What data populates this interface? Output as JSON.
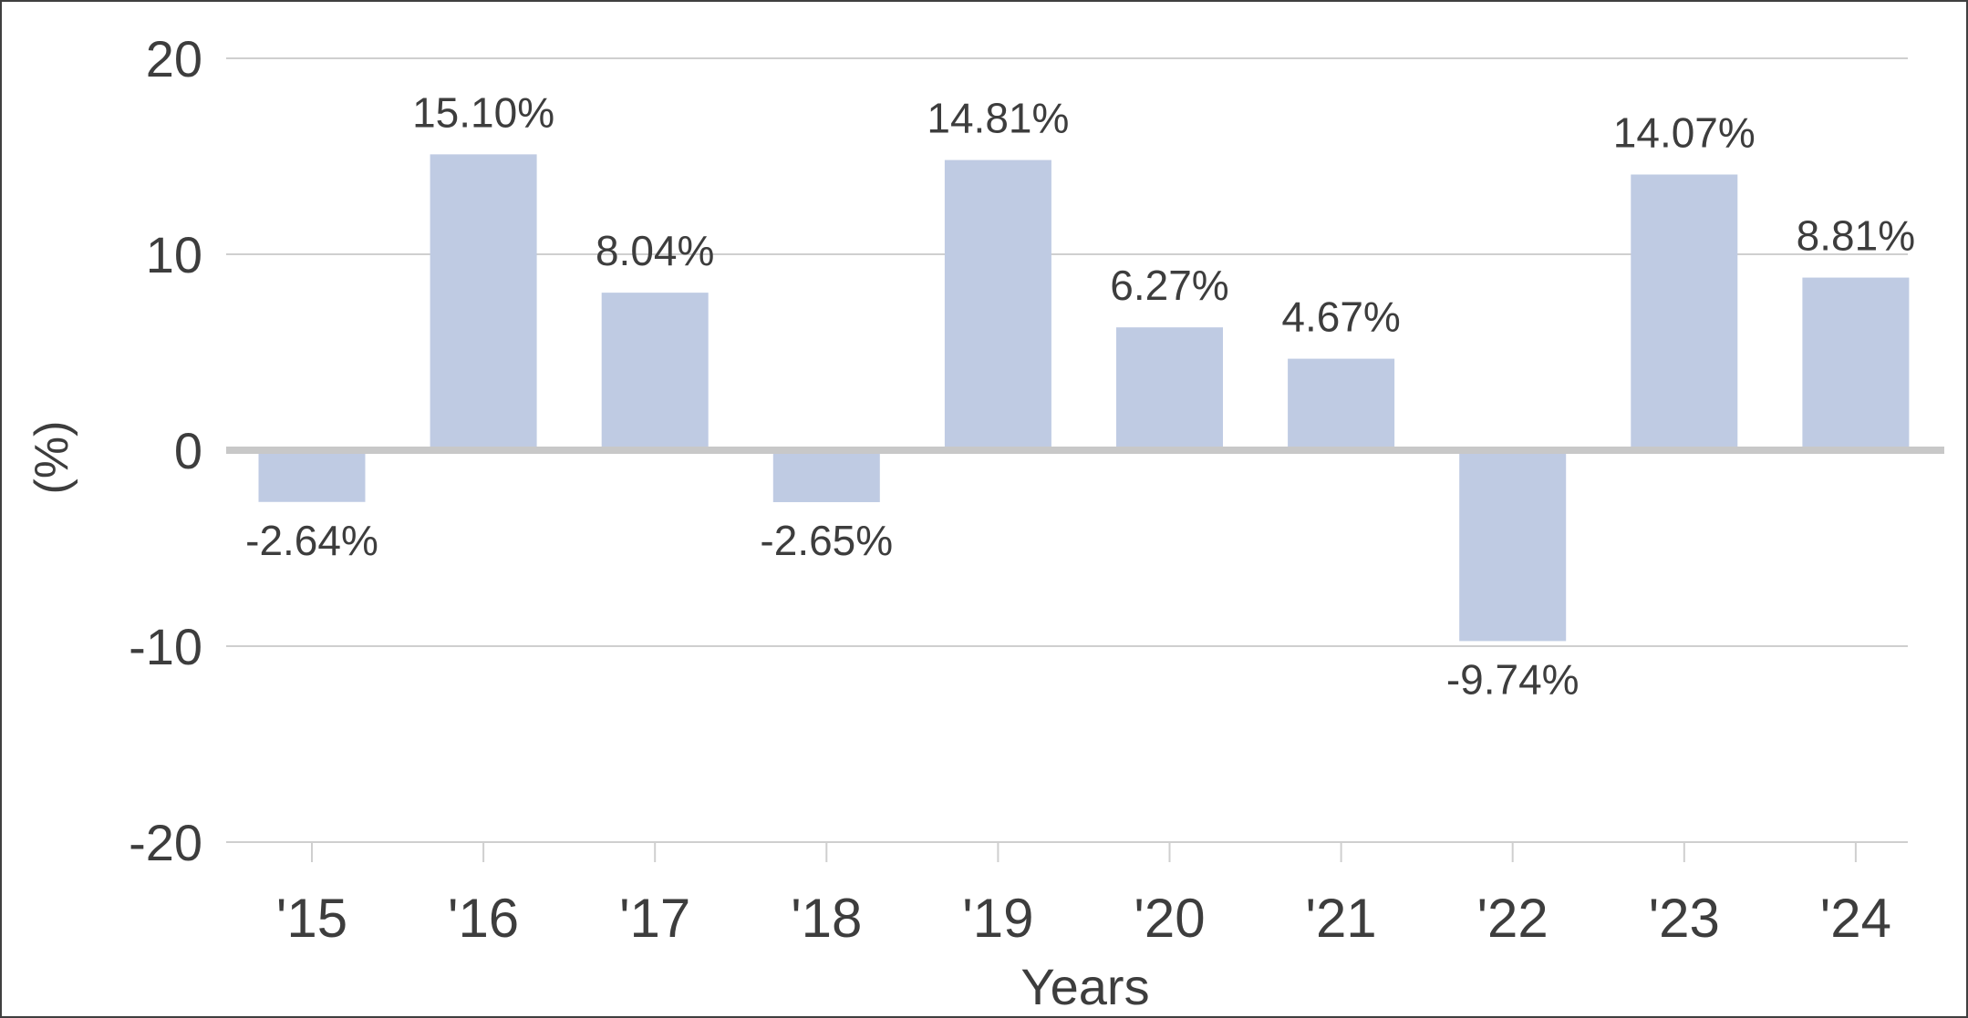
{
  "chart_data": {
    "type": "bar",
    "categories": [
      "'15",
      "'16",
      "'17",
      "'18",
      "'19",
      "'20",
      "'21",
      "'22",
      "'23",
      "'24"
    ],
    "values": [
      -2.64,
      15.1,
      8.04,
      -2.65,
      14.81,
      6.27,
      4.67,
      -9.74,
      14.07,
      8.81
    ],
    "data_labels": [
      "-2.64%",
      "15.10%",
      "8.04%",
      "-2.65%",
      "14.81%",
      "6.27%",
      "4.67%",
      "-9.74%",
      "14.07%",
      "8.81%"
    ],
    "title": "",
    "xlabel": "Years",
    "ylabel": "(%)",
    "ylim": [
      -20,
      20
    ],
    "yticks": [
      20,
      10,
      0,
      -10,
      -20
    ],
    "ytick_labels": [
      "20",
      "10",
      "0",
      "-10",
      "-20"
    ],
    "grid": true,
    "legend": "none",
    "colors": {
      "bar": "#bfcbe3",
      "gridline": "#cfcfcf",
      "zero_line": "#c8c8c8",
      "text": "#3d3d3d",
      "border": "#3f3f3f"
    }
  }
}
